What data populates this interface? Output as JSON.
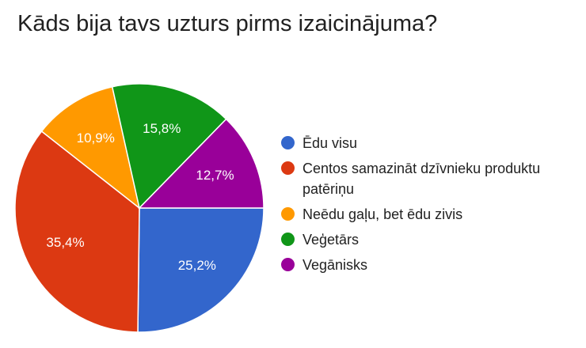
{
  "chart_data": {
    "type": "pie",
    "title": "Kāds bija tavs uzturs pirms izaicinājuma?",
    "categories": [
      "Ēdu visu",
      "Centos samazināt dzīvnieku produktu patēriņu",
      "Neēdu gaļu, bet ēdu zivis",
      "Veģetārs",
      "Vegānisks"
    ],
    "values": [
      25.2,
      35.4,
      10.9,
      15.8,
      12.7
    ],
    "value_labels": [
      "25,2%",
      "35,4%",
      "10,9%",
      "15,8%",
      "12,7%"
    ],
    "colors": [
      "#3366cc",
      "#dc3912",
      "#ff9900",
      "#109618",
      "#990099"
    ],
    "legend": "right"
  }
}
